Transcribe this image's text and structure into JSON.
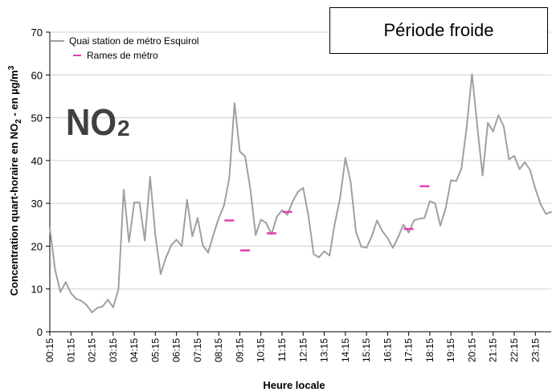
{
  "chart_data": {
    "type": "line",
    "title": "",
    "period_label": "Période froide",
    "pollutant_label": {
      "main": "NO",
      "sub": "2"
    },
    "xlabel": "Heure locale",
    "ylabel": "Concentration quart-horaire en NO2 - en µg/m3",
    "ylabel_parts": {
      "pre": "Concentration quart-horaire en NO",
      "sub": "2",
      "mid": " - en µg/m",
      "sup": "3"
    },
    "ylim": [
      0,
      70
    ],
    "yticks": [
      0,
      10,
      20,
      30,
      40,
      50,
      60,
      70
    ],
    "x_tick_labels": [
      "00:15",
      "01:15",
      "02:15",
      "03:15",
      "04:15",
      "05:15",
      "06:15",
      "07:15",
      "08:15",
      "09:15",
      "10:15",
      "11:15",
      "12:15",
      "13:15",
      "14:15",
      "15:15",
      "16:15",
      "17:15",
      "18:15",
      "19:15",
      "20:15",
      "21:15",
      "22:15",
      "23:15"
    ],
    "grid": "horizontal",
    "legend_position": "top-left",
    "series": [
      {
        "name": "Quai station de métro Esquirol",
        "style": "line",
        "color": "#a0a0a0",
        "times": [
          "00:15",
          "00:30",
          "00:45",
          "01:00",
          "01:15",
          "01:30",
          "01:45",
          "02:00",
          "02:15",
          "02:30",
          "02:45",
          "03:00",
          "03:15",
          "03:30",
          "03:45",
          "04:00",
          "04:15",
          "04:30",
          "04:45",
          "05:00",
          "05:15",
          "05:30",
          "05:45",
          "06:00",
          "06:15",
          "06:30",
          "06:45",
          "07:00",
          "07:15",
          "07:30",
          "07:45",
          "08:00",
          "08:15",
          "08:30",
          "08:45",
          "09:00",
          "09:15",
          "09:30",
          "09:45",
          "10:00",
          "10:15",
          "10:30",
          "10:45",
          "11:00",
          "11:15",
          "11:30",
          "11:45",
          "12:00",
          "12:15",
          "12:30",
          "12:45",
          "13:00",
          "13:15",
          "13:30",
          "13:45",
          "14:00",
          "14:15",
          "14:30",
          "14:45",
          "15:00",
          "15:15",
          "15:30",
          "15:45",
          "16:00",
          "16:15",
          "16:30",
          "16:45",
          "17:00",
          "17:15",
          "17:30",
          "17:45",
          "18:00",
          "18:15",
          "18:30",
          "18:45",
          "19:00",
          "19:15",
          "19:30",
          "19:45",
          "20:00",
          "20:15",
          "20:30",
          "20:45",
          "21:00",
          "21:15",
          "21:30",
          "21:45",
          "22:00",
          "22:15",
          "22:30",
          "22:45",
          "23:00",
          "23:15",
          "23:30",
          "23:45",
          "24:00"
        ],
        "values": [
          24.2,
          14.5,
          9.3,
          11.6,
          9.0,
          7.7,
          7.2,
          6.2,
          4.5,
          5.6,
          5.9,
          7.5,
          5.7,
          9.9,
          33.2,
          21.0,
          30.2,
          30.2,
          21.3,
          36.2,
          22.6,
          13.5,
          17.3,
          20.2,
          21.5,
          20.0,
          30.8,
          22.3,
          26.6,
          20.1,
          18.5,
          22.7,
          26.5,
          29.5,
          35.8,
          53.4,
          42.1,
          41.0,
          33.3,
          22.6,
          26.2,
          25.4,
          22.8,
          26.8,
          28.4,
          27.3,
          30.4,
          32.7,
          33.6,
          27.1,
          18.1,
          17.4,
          18.8,
          17.8,
          25.3,
          31.2,
          40.6,
          35.0,
          23.4,
          19.9,
          19.6,
          22.3,
          26.0,
          23.5,
          21.9,
          19.6,
          22.1,
          25.0,
          23.2,
          26.0,
          26.4,
          26.6,
          30.5,
          30.0,
          24.8,
          28.8,
          35.4,
          35.2,
          38.2,
          48.0,
          60.2,
          48.0,
          36.5,
          48.8,
          46.8,
          50.6,
          48.0,
          40.3,
          41.1,
          38.0,
          39.6,
          37.8,
          33.4,
          29.8,
          27.5,
          28.0
        ]
      },
      {
        "name": "Rames de métro",
        "style": "dash-markers",
        "color": "#e040b0",
        "points": [
          {
            "time": "08:45",
            "value": 26.0
          },
          {
            "time": "09:30",
            "value": 19.0
          },
          {
            "time": "10:45",
            "value": 23.0
          },
          {
            "time": "11:30",
            "value": 28.0
          },
          {
            "time": "17:15",
            "value": 24.0
          },
          {
            "time": "18:00",
            "value": 34.0
          }
        ]
      }
    ]
  }
}
